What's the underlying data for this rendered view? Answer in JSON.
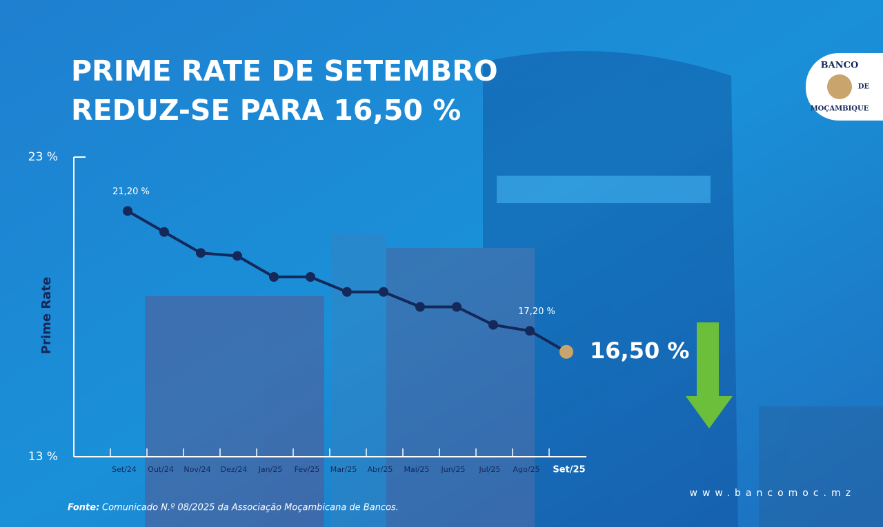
{
  "chart_data": {
    "type": "line",
    "title": [
      "PRIME RATE DE SETEMBRO",
      "REDUZ-SE PARA 16,50 %"
    ],
    "y_label": "Prime Rate",
    "categories": [
      "Set/24",
      "Out/24",
      "Nov/24",
      "Dez/24",
      "Jan/25",
      "Fev/25",
      "Mar/25",
      "Abr/25",
      "Mai/25",
      "Jun/25",
      "Jul/25",
      "Ago/25",
      "Set/25"
    ],
    "values": [
      21.2,
      20.5,
      19.8,
      19.7,
      19.0,
      19.0,
      18.5,
      18.5,
      18.0,
      18.0,
      17.4,
      17.2,
      16.5
    ],
    "value_labels": [
      "21,20 %",
      null,
      null,
      null,
      null,
      null,
      null,
      null,
      null,
      null,
      null,
      "17,20 %",
      "16,50 %"
    ],
    "color": "#14285a",
    "highlight_color": "#c9a46c",
    "ylim": [
      13,
      23
    ],
    "yticks": [
      {
        "value": 13,
        "label": "13 %"
      },
      {
        "value": 23,
        "label": "23 %"
      }
    ]
  },
  "source": {
    "label": "Fonte:",
    "text": "Comunicado N.º 08/2025 da Associação Moçambicana de Bancos."
  },
  "website": "www.bancomoc.mz",
  "logo": {
    "top": "BANCO",
    "middle": "DE",
    "bottom": "MOÇAMBIQUE"
  }
}
